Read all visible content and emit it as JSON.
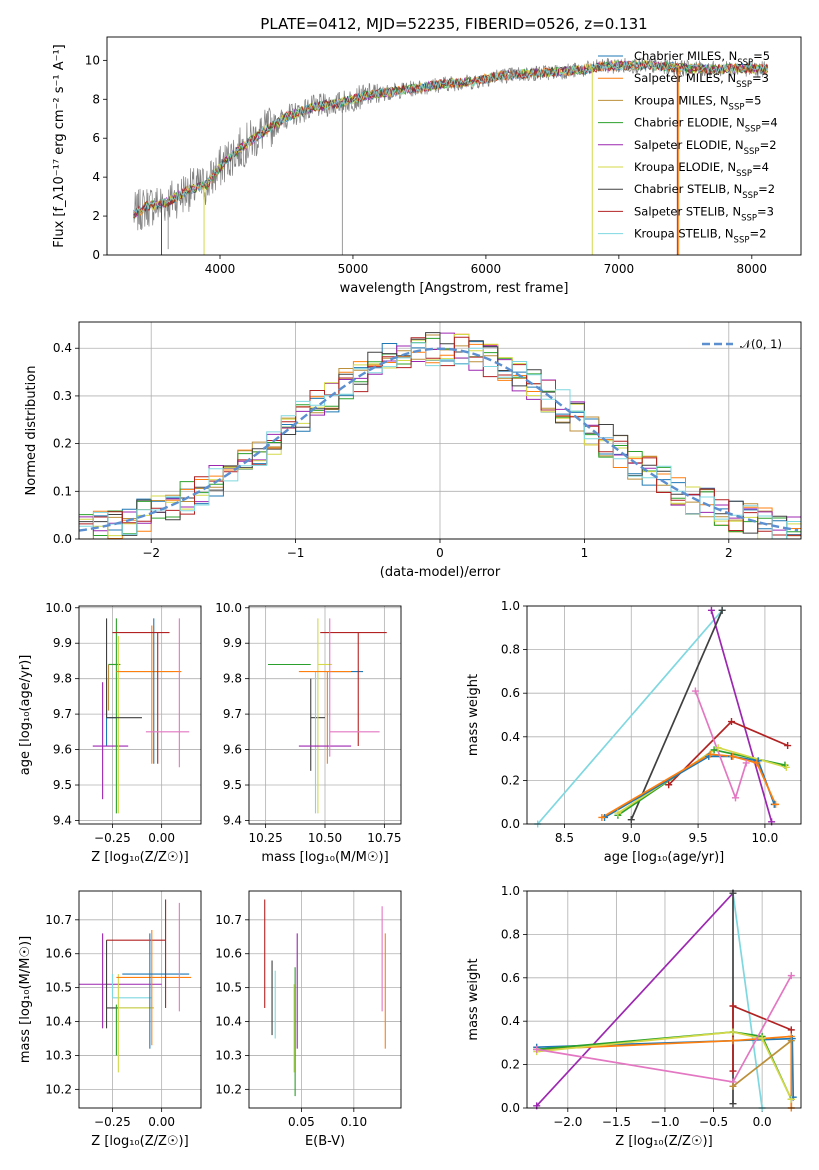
{
  "chart_data": [
    {
      "type": "line",
      "title": "PLATE=0412, MJD=52235, FIBERID=0526, z=0.131",
      "xlabel": "wavelength [Angstrom, rest frame]",
      "ylabel": "Flux [f_λ10⁻¹⁷ erg cm⁻² s⁻¹ A⁻¹]",
      "xlim": [
        3150,
        8370
      ],
      "ylim": [
        0,
        11.2
      ],
      "xticks": [
        "4000",
        "5000",
        "6000",
        "7000",
        "8000"
      ],
      "yticks": [
        "0",
        "2",
        "4",
        "6",
        "8",
        "10"
      ],
      "grid": false,
      "legend_position": "top-right",
      "data_series": {
        "name": "",
        "color": "#808080"
      },
      "models": [
        {
          "name": "Chabrier MILES, N_SSP=5",
          "label_main": "Chabrier MILES, N",
          "label_sub": "SSP",
          "label_tail": "=5",
          "color": "#1f77b4"
        },
        {
          "name": "Salpeter MILES, N_SSP=3",
          "label_main": "Salpeter MILES, N",
          "label_sub": "SSP",
          "label_tail": "=3",
          "color": "#ff7f0e"
        },
        {
          "name": "Kroupa MILES, N_SSP=5",
          "label_main": "Kroupa MILES, N",
          "label_sub": "SSP",
          "label_tail": "=5",
          "color": "#bc8f3a"
        },
        {
          "name": "Chabrier ELODIE, N_SSP=4",
          "label_main": "Chabrier ELODIE, N",
          "label_sub": "SSP",
          "label_tail": "=4",
          "color": "#2ca02c"
        },
        {
          "name": "Salpeter ELODIE, N_SSP=2",
          "label_main": "Salpeter ELODIE, N",
          "label_sub": "SSP",
          "label_tail": "=2",
          "color": "#9c27b0"
        },
        {
          "name": "Kroupa ELODIE, N_SSP=4",
          "label_main": "Kroupa ELODIE, N",
          "label_sub": "SSP",
          "label_tail": "=4",
          "color": "#d4d94a"
        },
        {
          "name": "Chabrier STELIB, N_SSP=2",
          "label_main": "Chabrier STELIB, N",
          "label_sub": "SSP",
          "label_tail": "=2",
          "color": "#404040"
        },
        {
          "name": "Salpeter STELIB, N_SSP=3",
          "label_main": "Salpeter STELIB, N",
          "label_sub": "SSP",
          "label_tail": "=3",
          "color": "#b22222"
        },
        {
          "name": "Kroupa STELIB, N_SSP=2",
          "label_main": "Kroupa STELIB, N",
          "label_sub": "SSP",
          "label_tail": "=2",
          "color": "#7fd8e0"
        }
      ],
      "continuum": {
        "x": [
          3350,
          3450,
          3600,
          3750,
          3900,
          4000,
          4100,
          4300,
          4500,
          4700,
          4900,
          5100,
          5300,
          5500,
          5700,
          5900,
          6100,
          6300,
          6500,
          6700,
          6900,
          7100,
          7300,
          7500,
          7700,
          7900,
          8100
        ],
        "y": [
          2.1,
          2.5,
          2.7,
          3.3,
          3.6,
          4.5,
          5.2,
          6.2,
          7.1,
          7.6,
          7.8,
          8.2,
          8.4,
          8.6,
          8.8,
          8.9,
          9.2,
          9.3,
          9.4,
          9.5,
          9.7,
          9.75,
          9.7,
          9.6,
          9.55,
          9.6,
          9.55
        ]
      }
    },
    {
      "type": "histogram",
      "title": "",
      "xlabel": "(data-model)/error",
      "ylabel": "Normed distribution",
      "xlim": [
        -2.5,
        2.5
      ],
      "ylim": [
        0,
        0.455
      ],
      "xticks": [
        "−2",
        "−1",
        "0",
        "1",
        "2"
      ],
      "yticks": [
        "0.0",
        "0.1",
        "0.2",
        "0.3",
        "0.4"
      ],
      "grid": true,
      "legend_position": "top-right",
      "legend_label": "𝒩(0, 1)",
      "gaussian": {
        "name": "𝒩(0, 1)",
        "mean": 0,
        "sigma": 1,
        "color": "#5b8fd0"
      },
      "bin_width": 0.1
    },
    {
      "type": "errorbar",
      "xlabel": "Z [log₁₀(Z/Z☉)]",
      "ylabel": "age  [log₁₀(age/yr)]",
      "xlim": [
        -0.42,
        0.2
      ],
      "ylim": [
        9.39,
        10.005
      ],
      "xticks": [
        "−0.25",
        "0.00"
      ],
      "yticks": [
        "9.4",
        "9.5",
        "9.6",
        "9.7",
        "9.8",
        "9.9",
        "10.0"
      ],
      "points": [
        {
          "x": -0.28,
          "y": 9.69,
          "xerr": [
            0.0,
            0.05
          ],
          "yerr": [
            0.08,
            0.11
          ],
          "color": "#1f77b4"
        },
        {
          "x": -0.3,
          "y": 9.61,
          "xerr": [
            0.05,
            0.13
          ],
          "yerr": [
            0.15,
            0.18
          ],
          "color": "#9c27b0"
        },
        {
          "x": -0.27,
          "y": 9.84,
          "xerr": [
            0.0,
            0.06
          ],
          "yerr": [
            0.13,
            0.0
          ],
          "color": "#bc8f3a"
        },
        {
          "x": -0.23,
          "y": 9.84,
          "xerr": [
            0.04,
            0.02
          ],
          "yerr": [
            0.42,
            0.13
          ],
          "color": "#2ca02c"
        },
        {
          "x": -0.22,
          "y": 9.84,
          "xerr": [
            0.0,
            0.0
          ],
          "yerr": [
            0.42,
            0.08
          ],
          "color": "#d4d94a"
        },
        {
          "x": -0.22,
          "y": 9.82,
          "xerr": [
            0.0,
            0.28
          ],
          "yerr": [
            0.0,
            0.0
          ],
          "color": "#7fd8e0"
        },
        {
          "x": -0.28,
          "y": 9.69,
          "xerr": [
            0.0,
            0.18
          ],
          "yerr": [
            0.0,
            0.28
          ],
          "color": "#404040"
        },
        {
          "x": -0.05,
          "y": 9.82,
          "xerr": [
            0.18,
            0.15
          ],
          "yerr": [
            0.26,
            0.13
          ],
          "color": "#ff7f0e"
        },
        {
          "x": -0.04,
          "y": 9.82,
          "xerr": [
            0.0,
            0.0
          ],
          "yerr": [
            0.26,
            0.15
          ],
          "color": "#1f77b4"
        },
        {
          "x": -0.02,
          "y": 9.93,
          "xerr": [
            0.23,
            0.06
          ],
          "yerr": [
            0.37,
            0.0
          ],
          "color": "#b22222"
        },
        {
          "x": -0.08,
          "y": 9.65,
          "xerr": [
            0.0,
            0.22
          ],
          "yerr": [
            0.0,
            0.0
          ],
          "color": "#e377c2"
        },
        {
          "x": 0.09,
          "y": 9.65,
          "xerr": [
            0.0,
            0.0
          ],
          "yerr": [
            0.1,
            0.32
          ],
          "color": "#e377c2"
        },
        {
          "x": -0.02,
          "y": 9.82,
          "xerr": [
            0.0,
            0.0
          ],
          "yerr": [
            0.0,
            0.0
          ],
          "color": "#b22222"
        }
      ]
    },
    {
      "type": "errorbar",
      "xlabel": "mass [log₁₀(M/M☉)]",
      "ylabel": "",
      "xlim": [
        10.18,
        10.82
      ],
      "ylim": [
        9.39,
        10.005
      ],
      "xticks": [
        "10.25",
        "10.50",
        "10.75"
      ],
      "yticks": [
        "9.4",
        "9.5",
        "9.6",
        "9.7",
        "9.8",
        "9.9",
        "10.0"
      ],
      "points": [
        {
          "x": 10.44,
          "y": 9.69,
          "xerr": [
            0.0,
            0.06
          ],
          "yerr": [
            0.15,
            0.11
          ],
          "color": "#404040"
        },
        {
          "x": 10.44,
          "y": 9.84,
          "xerr": [
            0.18,
            0.0
          ],
          "yerr": [
            0.0,
            0.0
          ],
          "color": "#2ca02c"
        },
        {
          "x": 10.47,
          "y": 9.84,
          "xerr": [
            0.0,
            0.06
          ],
          "yerr": [
            0.42,
            0.13
          ],
          "color": "#d4d94a"
        },
        {
          "x": 10.46,
          "y": 9.82,
          "xerr": [
            0.0,
            0.0
          ],
          "yerr": [
            0.4,
            0.0
          ],
          "color": "#7fd8e0"
        },
        {
          "x": 10.52,
          "y": 9.82,
          "xerr": [
            0.0,
            0.14
          ],
          "yerr": [
            0.0,
            0.0
          ],
          "color": "#1f77b4"
        },
        {
          "x": 10.51,
          "y": 9.82,
          "xerr": [
            0.12,
            0.1
          ],
          "yerr": [
            0.26,
            0.0
          ],
          "color": "#ff7f0e"
        },
        {
          "x": 10.51,
          "y": 9.61,
          "xerr": [
            0.12,
            0.1
          ],
          "yerr": [
            0.0,
            0.0
          ],
          "color": "#9c27b0"
        },
        {
          "x": 10.64,
          "y": 9.93,
          "xerr": [
            0.16,
            0.12
          ],
          "yerr": [
            0.32,
            0.0
          ],
          "color": "#b22222"
        },
        {
          "x": 10.52,
          "y": 9.65,
          "xerr": [
            0.0,
            0.21
          ],
          "yerr": [
            0.07,
            0.32
          ],
          "color": "#e377c2"
        }
      ]
    },
    {
      "type": "line",
      "xlabel": "age  [log₁₀(age/yr)]",
      "ylabel": "mass weight",
      "xlim": [
        8.22,
        10.27
      ],
      "ylim": [
        0,
        1
      ],
      "xticks": [
        "8.5",
        "9.0",
        "9.5",
        "10.0"
      ],
      "yticks": [
        "0.0",
        "0.2",
        "0.4",
        "0.6",
        "0.8",
        "1.0"
      ],
      "grid": true,
      "series": [
        {
          "color": "#7fd8e0",
          "x": [
            8.3,
            9.68
          ],
          "y": [
            0.0,
            0.98
          ]
        },
        {
          "color": "#9c27b0",
          "x": [
            9.6,
            10.05
          ],
          "y": [
            0.98,
            0.01
          ]
        },
        {
          "color": "#404040",
          "x": [
            9.0,
            9.68
          ],
          "y": [
            0.02,
            0.98
          ]
        },
        {
          "color": "#b22222",
          "x": [
            9.28,
            9.75,
            10.17
          ],
          "y": [
            0.18,
            0.47,
            0.36
          ]
        },
        {
          "color": "#2ca02c",
          "x": [
            8.9,
            9.62,
            10.15
          ],
          "y": [
            0.04,
            0.34,
            0.27
          ]
        },
        {
          "color": "#d4d94a",
          "x": [
            8.9,
            9.65,
            10.16
          ],
          "y": [
            0.05,
            0.35,
            0.26
          ]
        },
        {
          "color": "#1f77b4",
          "x": [
            8.8,
            9.58,
            9.75,
            9.95,
            10.07
          ],
          "y": [
            0.03,
            0.31,
            0.31,
            0.29,
            0.09
          ]
        },
        {
          "color": "#ff7f0e",
          "x": [
            8.78,
            9.59,
            9.76,
            9.94,
            10.08
          ],
          "y": [
            0.03,
            0.32,
            0.31,
            0.28,
            0.09
          ]
        },
        {
          "color": "#e377c2",
          "x": [
            9.48,
            9.78,
            9.86
          ],
          "y": [
            0.61,
            0.12,
            0.28
          ]
        }
      ]
    },
    {
      "type": "errorbar",
      "xlabel": "Z [log₁₀(Z/Z☉)]",
      "ylabel": "mass [log₁₀(M/M☉)]",
      "xlim": [
        -0.42,
        0.2
      ],
      "ylim": [
        10.145,
        10.785
      ],
      "xticks": [
        "−0.25",
        "0.00"
      ],
      "yticks": [
        "10.2",
        "10.3",
        "10.4",
        "10.5",
        "10.6",
        "10.7"
      ],
      "points": [
        {
          "x": -0.3,
          "y": 10.51,
          "xerr": [
            0.13,
            0.3
          ],
          "yerr": [
            0.13,
            0.15
          ],
          "color": "#9c27b0"
        },
        {
          "x": -0.28,
          "y": 10.44,
          "xerr": [
            0.0,
            0.24
          ],
          "yerr": [
            0.06,
            0.2
          ],
          "color": "#404040"
        },
        {
          "x": -0.25,
          "y": 10.47,
          "xerr": [
            0.0,
            0.2
          ],
          "yerr": [
            0.0,
            0.07
          ],
          "color": "#7fd8e0"
        },
        {
          "x": -0.22,
          "y": 10.44,
          "xerr": [
            0.0,
            0.18
          ],
          "yerr": [
            0.19,
            0.1
          ],
          "color": "#d4d94a"
        },
        {
          "x": -0.23,
          "y": 10.45,
          "xerr": [
            0.0,
            0.0
          ],
          "yerr": [
            0.15,
            0.0
          ],
          "color": "#2ca02c"
        },
        {
          "x": -0.28,
          "y": 10.64,
          "xerr": [
            0.0,
            0.3
          ],
          "yerr": [
            0.0,
            0.0
          ],
          "color": "#b22222"
        },
        {
          "x": -0.05,
          "y": 10.53,
          "xerr": [
            0.18,
            0.2
          ],
          "yerr": [
            0.2,
            0.14
          ],
          "color": "#ff7f0e"
        },
        {
          "x": -0.06,
          "y": 10.54,
          "xerr": [
            0.14,
            0.2
          ],
          "yerr": [
            0.22,
            0.12
          ],
          "color": "#1f77b4"
        },
        {
          "x": 0.02,
          "y": 10.64,
          "xerr": [
            0.0,
            0.0
          ],
          "yerr": [
            0.2,
            0.12
          ],
          "color": "#b22222"
        },
        {
          "x": 0.09,
          "y": 10.54,
          "xerr": [
            0.0,
            0.0
          ],
          "yerr": [
            0.11,
            0.21
          ],
          "color": "#e377c2"
        }
      ]
    },
    {
      "type": "errorbar",
      "xlabel": "E(B-V)",
      "ylabel": "",
      "xlim": [
        0.0,
        0.145
      ],
      "ylim": [
        10.145,
        10.785
      ],
      "xticks": [
        "0.05",
        "0.10"
      ],
      "yticks": [
        "10.2",
        "10.3",
        "10.4",
        "10.5",
        "10.6",
        "10.7"
      ],
      "points": [
        {
          "x": 0.015,
          "y": 10.6,
          "yerr": [
            0.16,
            0.16
          ],
          "color": "#b22222"
        },
        {
          "x": 0.022,
          "y": 10.47,
          "yerr": [
            0.11,
            0.11
          ],
          "color": "#404040"
        },
        {
          "x": 0.025,
          "y": 10.45,
          "yerr": [
            0.1,
            0.1
          ],
          "color": "#7fd8e0"
        },
        {
          "x": 0.043,
          "y": 10.38,
          "yerr": [
            0.13,
            0.13
          ],
          "color": "#d4d94a"
        },
        {
          "x": 0.044,
          "y": 10.4,
          "yerr": [
            0.22,
            0.16
          ],
          "color": "#2ca02c"
        },
        {
          "x": 0.046,
          "y": 10.5,
          "yerr": [
            0.18,
            0.16
          ],
          "color": "#9c27b0"
        },
        {
          "x": 0.127,
          "y": 10.58,
          "yerr": [
            0.15,
            0.16
          ],
          "color": "#e377c2"
        },
        {
          "x": 0.13,
          "y": 10.5,
          "yerr": [
            0.18,
            0.16
          ],
          "color": "#ff7f0e"
        }
      ]
    },
    {
      "type": "line",
      "xlabel": "Z [log₁₀(Z/Z☉)]",
      "ylabel": "mass weight",
      "xlim": [
        -2.42,
        0.4
      ],
      "ylim": [
        0,
        1
      ],
      "xticks": [
        "−2.0",
        "−1.5",
        "−1.0",
        "−0.5",
        "0.0"
      ],
      "yticks": [
        "0.0",
        "0.2",
        "0.4",
        "0.6",
        "0.8",
        "1.0"
      ],
      "grid": true,
      "series": [
        {
          "color": "#9c27b0",
          "x": [
            -2.32,
            -0.3
          ],
          "y": [
            0.01,
            0.99
          ]
        },
        {
          "color": "#7fd8e0",
          "x": [
            -0.3,
            0.0
          ],
          "y": [
            0.99,
            0.0
          ]
        },
        {
          "color": "#404040",
          "x": [
            -0.3,
            -0.3
          ],
          "y": [
            0.99,
            0.02
          ]
        },
        {
          "color": "#1f77b4",
          "x": [
            -2.32,
            -0.3,
            0.31,
            0.32
          ],
          "y": [
            0.28,
            0.31,
            0.32,
            0.05
          ]
        },
        {
          "color": "#ff7f0e",
          "x": [
            -2.32,
            -0.3,
            0.3,
            0.3
          ],
          "y": [
            0.27,
            0.31,
            0.33,
            0.0
          ]
        },
        {
          "color": "#2ca02c",
          "x": [
            -2.32,
            -0.3,
            0.0,
            0.3
          ],
          "y": [
            0.27,
            0.35,
            0.33,
            0.04
          ]
        },
        {
          "color": "#d4d94a",
          "x": [
            -2.32,
            -0.3,
            0.0,
            0.3
          ],
          "y": [
            0.26,
            0.35,
            0.32,
            0.04
          ]
        },
        {
          "color": "#b22222",
          "x": [
            -0.3,
            -0.3,
            0.3
          ],
          "y": [
            0.17,
            0.47,
            0.36
          ]
        },
        {
          "color": "#e377c2",
          "x": [
            -2.32,
            -0.3,
            0.3
          ],
          "y": [
            0.27,
            0.12,
            0.61
          ]
        },
        {
          "color": "#bc8f3a",
          "x": [
            -0.3,
            0.3
          ],
          "y": [
            0.1,
            0.31
          ]
        }
      ]
    }
  ]
}
